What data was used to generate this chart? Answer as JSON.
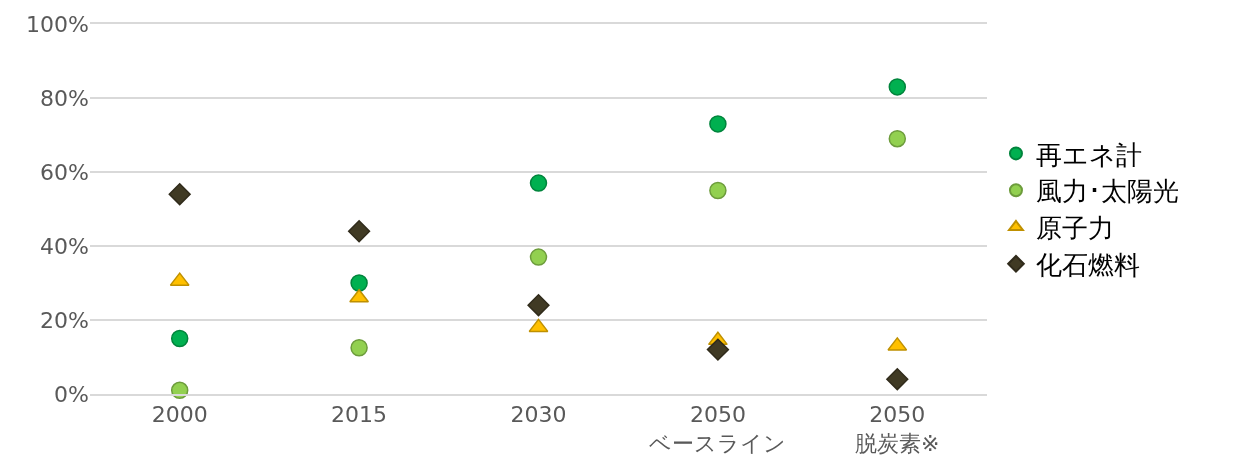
{
  "chart_data": {
    "type": "scatter",
    "categories": [
      "2000",
      "2015",
      "2030",
      "2050\nベースライン",
      "2050\n脱炭素※"
    ],
    "series": [
      {
        "name": "再エネ計",
        "color": "#00b050",
        "marker": "circle",
        "values": [
          15,
          30,
          57,
          73,
          83
        ]
      },
      {
        "name": "風力･太陽光",
        "color": "#92d050",
        "marker": "circle",
        "values": [
          1,
          12.5,
          37,
          55,
          69
        ]
      },
      {
        "name": "原子力",
        "color": "#ffc000",
        "marker": "triangle",
        "values": [
          30.5,
          26,
          18,
          14.5,
          13
        ]
      },
      {
        "name": "化石燃料",
        "color": "#403a24",
        "marker": "diamond",
        "values": [
          54,
          44,
          24,
          12,
          4
        ]
      }
    ],
    "ylim": [
      0,
      100
    ],
    "yticks": [
      {
        "value": 0,
        "label": "0%"
      },
      {
        "value": 20,
        "label": "20%"
      },
      {
        "value": 40,
        "label": "40%"
      },
      {
        "value": 60,
        "label": "60%"
      },
      {
        "value": 80,
        "label": "80%"
      },
      {
        "value": 100,
        "label": "100%"
      }
    ],
    "grid": "y",
    "legend": "right"
  }
}
